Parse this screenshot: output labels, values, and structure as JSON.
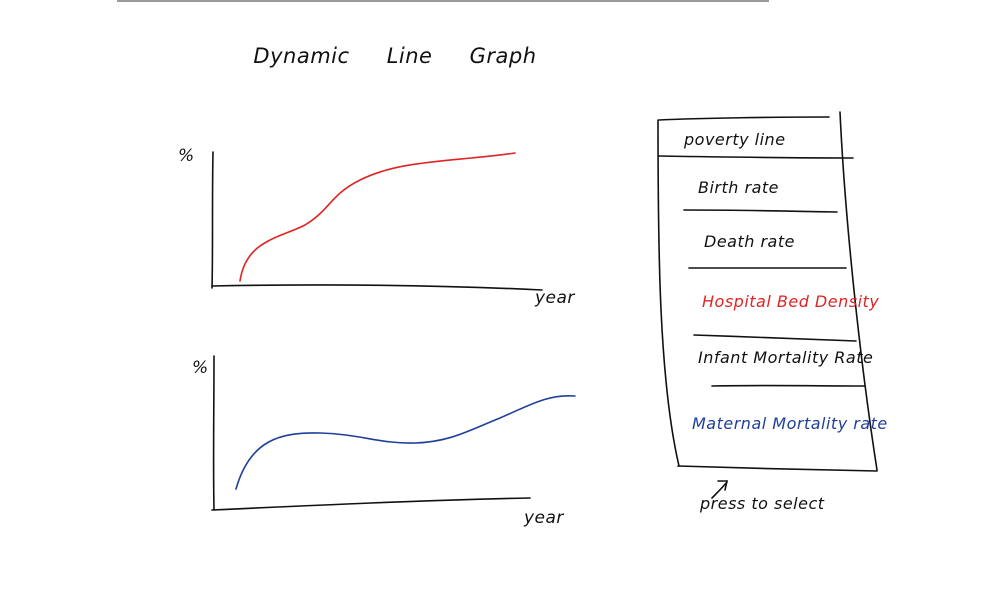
{
  "title": "Dynamic Line Graph",
  "charts": [
    {
      "y_label": "%",
      "x_label": "year",
      "line_color": "#e02424"
    },
    {
      "y_label": "%",
      "x_label": "year",
      "line_color": "#1f3f9a"
    }
  ],
  "menu": {
    "items": [
      {
        "label": "poverty line",
        "color": "#111111"
      },
      {
        "label": "Birth rate",
        "color": "#111111"
      },
      {
        "label": "Death rate",
        "color": "#111111"
      },
      {
        "label": "Hospital Bed Density",
        "color": "#e02424"
      },
      {
        "label": "Infant Mortality Rate",
        "color": "#111111"
      },
      {
        "label": "Maternal Mortality rate",
        "color": "#1f3f9a"
      }
    ],
    "hint": "press to select"
  }
}
